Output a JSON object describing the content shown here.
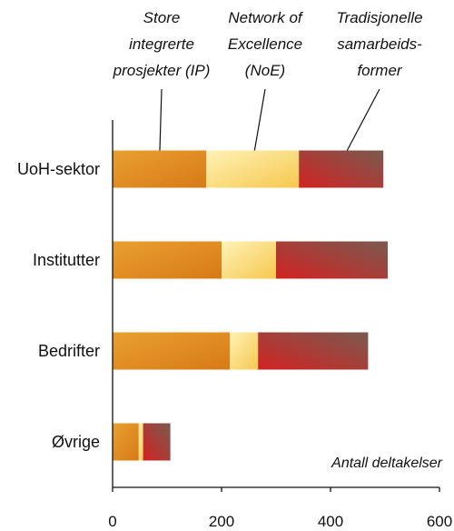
{
  "chart_data": {
    "type": "bar",
    "orientation": "horizontal",
    "stacked": true,
    "categories": [
      "UoH-sektor",
      "Institutter",
      "Bedrifter",
      "Øvrige"
    ],
    "series": [
      {
        "name": "Store integrerte prosjekter (IP)",
        "name_lines": [
          "Store",
          "integrerte",
          "prosjekter (IP)"
        ],
        "values": [
          172,
          200,
          215,
          48
        ],
        "colors": [
          "#e9a030",
          "#d77a17"
        ]
      },
      {
        "name": "Network of Excellence (NoE)",
        "name_lines": [
          "Network of",
          "Excellence",
          "(NoE)"
        ],
        "values": [
          170,
          100,
          52,
          8
        ],
        "colors": [
          "#fff2b6",
          "#f6c84f"
        ]
      },
      {
        "name": "Tradisjonelle samarbeidsformer",
        "name_lines": [
          "Tradisjonelle",
          "samarbeids-",
          "former"
        ],
        "values": [
          155,
          205,
          202,
          50
        ],
        "colors": [
          "#d22322",
          "#7a5a50"
        ]
      }
    ],
    "xlim": [
      0,
      600
    ],
    "xticks": [
      "0",
      "200",
      "400",
      "600"
    ],
    "axis_note": "Antall deltakelser",
    "grid": false,
    "legend": "top, labels with leader lines into first bar"
  }
}
